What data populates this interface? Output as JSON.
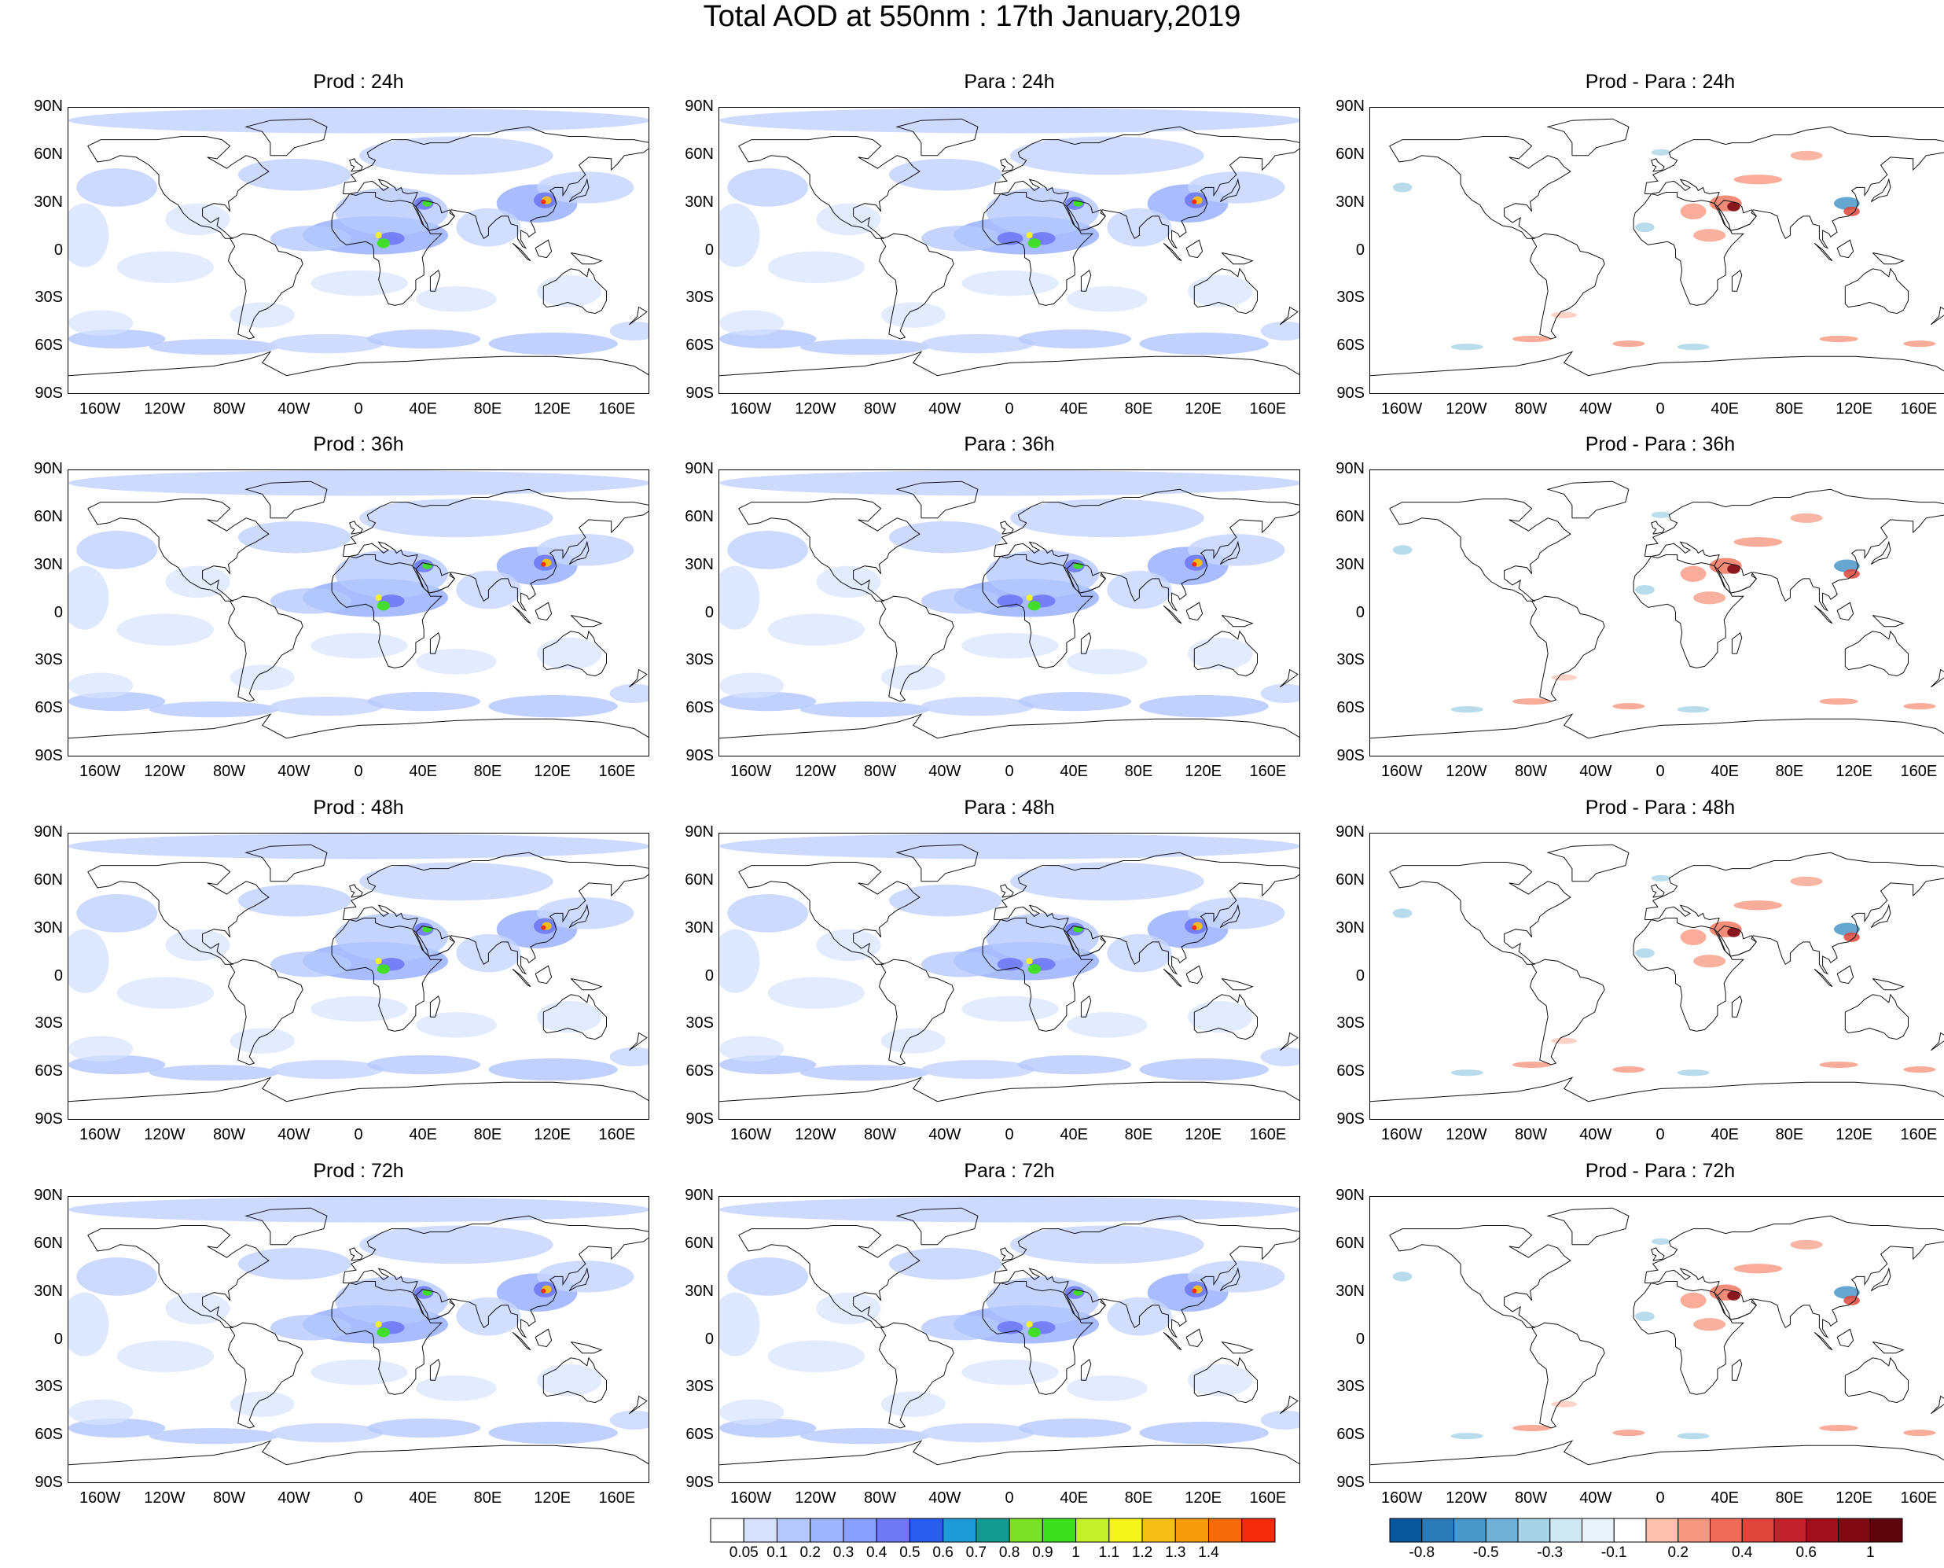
{
  "title": "Total AOD at 550nm : 17th January,2019",
  "lat_labels": [
    "90N",
    "60N",
    "30N",
    "0",
    "30S",
    "60S",
    "90S"
  ],
  "lon_labels": [
    "160W",
    "120W",
    "80W",
    "40W",
    "0",
    "40E",
    "80E",
    "120E",
    "160E"
  ],
  "panels": [
    {
      "title": "Prod : 24h",
      "kind": "aod"
    },
    {
      "title": "Para : 24h",
      "kind": "aod"
    },
    {
      "title": "Prod - Para : 24h",
      "kind": "diff"
    },
    {
      "title": "Prod : 36h",
      "kind": "aod"
    },
    {
      "title": "Para : 36h",
      "kind": "aod"
    },
    {
      "title": "Prod - Para : 36h",
      "kind": "diff"
    },
    {
      "title": "Prod : 48h",
      "kind": "aod"
    },
    {
      "title": "Para : 48h",
      "kind": "aod"
    },
    {
      "title": "Prod - Para : 48h",
      "kind": "diff"
    },
    {
      "title": "Prod : 72h",
      "kind": "aod"
    },
    {
      "title": "Para : 72h",
      "kind": "aod"
    },
    {
      "title": "Prod - Para : 72h",
      "kind": "diff"
    }
  ],
  "aod_colorbar": {
    "labels": [
      "0.05",
      "0.1",
      "0.2",
      "0.3",
      "0.4",
      "0.5",
      "0.6",
      "0.7",
      "0.8",
      "0.9",
      "1",
      "1.1",
      "1.2",
      "1.3",
      "1.4"
    ],
    "colors": [
      "#ffffff",
      "#d6e2ff",
      "#b5c9ff",
      "#9eb5ff",
      "#8aa0ff",
      "#6f79f5",
      "#2a5cf0",
      "#1e9ad6",
      "#149b8f",
      "#7ce028",
      "#3ee01e",
      "#c3f02b",
      "#f5f51a",
      "#f5c014",
      "#f59b0c",
      "#f56b0a",
      "#f52a0a"
    ]
  },
  "diff_colorbar": {
    "labels": [
      "-0.8",
      "-0.5",
      "-0.3",
      "-0.1",
      "0.2",
      "0.4",
      "0.6",
      "1"
    ],
    "colors": [
      "#08589e",
      "#2b7bb9",
      "#4a98c9",
      "#6fb0d7",
      "#a6d3e6",
      "#cfe8f3",
      "#e8f4fa",
      "#ffffff",
      "#fbc0ae",
      "#f7977f",
      "#f06b5a",
      "#e0453b",
      "#c2232b",
      "#a10e1d",
      "#7f0a14",
      "#5c050d"
    ]
  }
}
